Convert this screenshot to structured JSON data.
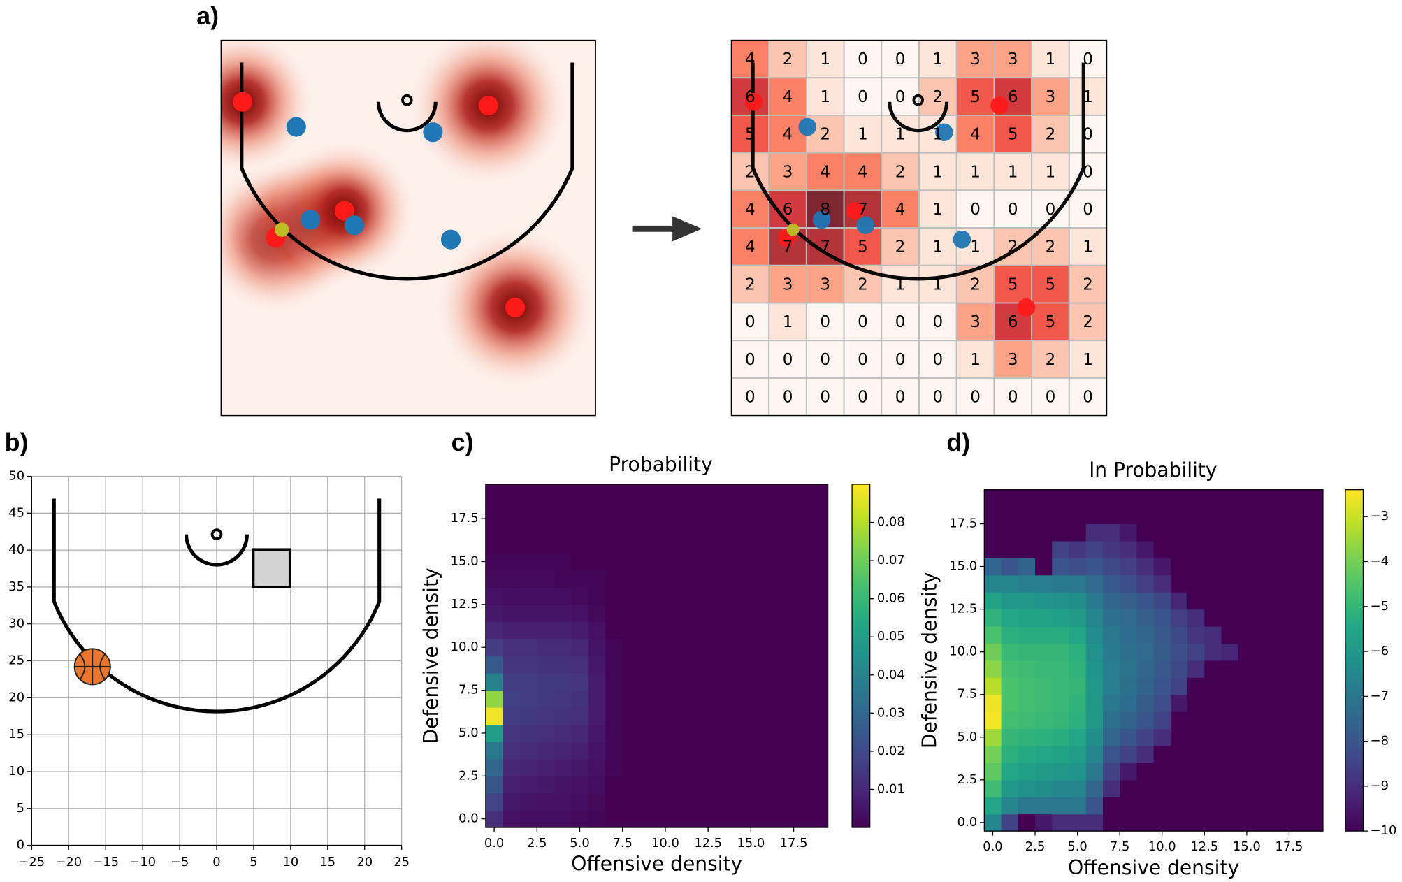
{
  "chart_data": [
    {
      "type": "count-grid",
      "panel": "a)",
      "values": [
        [
          4,
          2,
          1,
          0,
          0,
          1,
          3,
          3,
          1,
          0
        ],
        [
          6,
          4,
          1,
          0,
          0,
          2,
          5,
          6,
          3,
          1
        ],
        [
          5,
          4,
          2,
          1,
          1,
          1,
          4,
          5,
          2,
          0
        ],
        [
          2,
          3,
          4,
          4,
          2,
          1,
          1,
          1,
          1,
          0
        ],
        [
          4,
          6,
          8,
          7,
          4,
          1,
          0,
          0,
          0,
          0
        ],
        [
          4,
          7,
          7,
          5,
          2,
          1,
          1,
          2,
          2,
          1
        ],
        [
          2,
          3,
          3,
          2,
          1,
          1,
          2,
          5,
          5,
          2
        ],
        [
          0,
          1,
          0,
          0,
          0,
          0,
          3,
          6,
          5,
          2
        ],
        [
          0,
          0,
          0,
          0,
          0,
          0,
          1,
          3,
          2,
          1
        ],
        [
          0,
          0,
          0,
          0,
          0,
          0,
          0,
          0,
          0,
          0
        ]
      ]
    },
    {
      "type": "court",
      "panel": "b)",
      "grid": true,
      "xlim": [
        -25,
        25
      ],
      "ylim": [
        0,
        50
      ],
      "xticks": [
        {
          "value": -25,
          "label": "−25"
        },
        {
          "value": -20,
          "label": "−20"
        },
        {
          "value": -15,
          "label": "−15"
        },
        {
          "value": -10,
          "label": "−10"
        },
        {
          "value": -5,
          "label": "−5"
        },
        0,
        5,
        10,
        15,
        20,
        25
      ],
      "yticks": [
        0,
        5,
        10,
        15,
        20,
        25,
        30,
        35,
        40,
        45,
        50
      ]
    },
    {
      "type": "heatmap",
      "panel": "c)",
      "title": "Probability",
      "xlabel": "Offensive density",
      "ylabel": "Defensive density",
      "colormap": "viridis",
      "xlim": [
        -0.5,
        19.5
      ],
      "ylim": [
        -0.5,
        19.5
      ],
      "xticks": [
        {
          "value": 0,
          "label": "0.0"
        },
        2.5,
        {
          "value": 5,
          "label": "5.0"
        },
        7.5,
        {
          "value": 10,
          "label": "10.0"
        },
        12.5,
        {
          "value": 15,
          "label": "15.0"
        },
        17.5
      ],
      "yticks": [
        {
          "value": 0,
          "label": "0.0"
        },
        2.5,
        {
          "value": 5,
          "label": "5.0"
        },
        7.5,
        {
          "value": 10,
          "label": "10.0"
        },
        12.5,
        {
          "value": 15,
          "label": "15.0"
        },
        17.5
      ],
      "clim": [
        0,
        0.09
      ],
      "cticks": [
        0.01,
        0.02,
        0.03,
        0.04,
        0.05,
        0.06,
        0.07,
        0.08
      ],
      "x": [
        0,
        1,
        2,
        3,
        4,
        5,
        6,
        7,
        8,
        9,
        10,
        11,
        12,
        13,
        14,
        15,
        16,
        17,
        18,
        19
      ],
      "y": [
        0,
        1,
        2,
        3,
        4,
        5,
        6,
        7,
        8,
        9,
        10,
        11,
        12,
        13,
        14,
        15,
        16,
        17,
        18,
        19
      ],
      "values": [
        [
          0.012,
          0.004,
          0.003,
          0.003,
          0.003,
          0.002,
          0.001,
          0,
          0,
          0,
          0,
          0,
          0,
          0,
          0,
          0,
          0,
          0,
          0,
          0
        ],
        [
          0.018,
          0.006,
          0.005,
          0.004,
          0.004,
          0.003,
          0.002,
          0,
          0,
          0,
          0,
          0,
          0,
          0,
          0,
          0,
          0,
          0,
          0,
          0
        ],
        [
          0.024,
          0.008,
          0.007,
          0.006,
          0.005,
          0.004,
          0.003,
          0,
          0,
          0,
          0,
          0,
          0,
          0,
          0,
          0,
          0,
          0,
          0,
          0
        ],
        [
          0.03,
          0.01,
          0.009,
          0.008,
          0.007,
          0.006,
          0.004,
          0.001,
          0,
          0,
          0,
          0,
          0,
          0,
          0,
          0,
          0,
          0,
          0,
          0
        ],
        [
          0.036,
          0.012,
          0.011,
          0.01,
          0.009,
          0.008,
          0.005,
          0.001,
          0,
          0,
          0,
          0,
          0,
          0,
          0,
          0,
          0,
          0,
          0,
          0
        ],
        [
          0.05,
          0.014,
          0.013,
          0.012,
          0.011,
          0.01,
          0.006,
          0.001,
          0,
          0,
          0,
          0,
          0,
          0,
          0,
          0,
          0,
          0,
          0,
          0
        ],
        [
          0.088,
          0.016,
          0.015,
          0.014,
          0.013,
          0.012,
          0.007,
          0.001,
          0,
          0,
          0,
          0,
          0,
          0,
          0,
          0,
          0,
          0,
          0,
          0
        ],
        [
          0.075,
          0.017,
          0.016,
          0.015,
          0.014,
          0.013,
          0.007,
          0.001,
          0,
          0,
          0,
          0,
          0,
          0,
          0,
          0,
          0,
          0,
          0,
          0
        ],
        [
          0.04,
          0.016,
          0.016,
          0.015,
          0.015,
          0.014,
          0.007,
          0.001,
          0,
          0,
          0,
          0,
          0,
          0,
          0,
          0,
          0,
          0,
          0,
          0
        ],
        [
          0.025,
          0.014,
          0.014,
          0.013,
          0.013,
          0.012,
          0.006,
          0.001,
          0,
          0,
          0,
          0,
          0,
          0,
          0,
          0,
          0,
          0,
          0,
          0
        ],
        [
          0.016,
          0.012,
          0.012,
          0.011,
          0.011,
          0.01,
          0.005,
          0.001,
          0,
          0,
          0,
          0,
          0,
          0,
          0,
          0,
          0,
          0,
          0,
          0
        ],
        [
          0.01,
          0.008,
          0.008,
          0.008,
          0.008,
          0.007,
          0.004,
          0,
          0,
          0,
          0,
          0,
          0,
          0,
          0,
          0,
          0,
          0,
          0,
          0
        ],
        [
          0.006,
          0.005,
          0.005,
          0.005,
          0.005,
          0.004,
          0.002,
          0,
          0,
          0,
          0,
          0,
          0,
          0,
          0,
          0,
          0,
          0,
          0,
          0
        ],
        [
          0.004,
          0.003,
          0.003,
          0.003,
          0.003,
          0.002,
          0.001,
          0,
          0,
          0,
          0,
          0,
          0,
          0,
          0,
          0,
          0,
          0,
          0,
          0
        ],
        [
          0.002,
          0.002,
          0.002,
          0.002,
          0.001,
          0.001,
          0.001,
          0,
          0,
          0,
          0,
          0,
          0,
          0,
          0,
          0,
          0,
          0,
          0,
          0
        ],
        [
          0.001,
          0.001,
          0.001,
          0.001,
          0.001,
          0,
          0,
          0,
          0,
          0,
          0,
          0,
          0,
          0,
          0,
          0,
          0,
          0,
          0,
          0
        ],
        [
          0,
          0,
          0,
          0,
          0,
          0,
          0,
          0,
          0,
          0,
          0,
          0,
          0,
          0,
          0,
          0,
          0,
          0,
          0,
          0
        ],
        [
          0,
          0,
          0,
          0,
          0,
          0,
          0,
          0,
          0,
          0,
          0,
          0,
          0,
          0,
          0,
          0,
          0,
          0,
          0,
          0
        ],
        [
          0,
          0,
          0,
          0,
          0,
          0,
          0,
          0,
          0,
          0,
          0,
          0,
          0,
          0,
          0,
          0,
          0,
          0,
          0,
          0
        ],
        [
          0,
          0,
          0,
          0,
          0,
          0,
          0,
          0,
          0,
          0,
          0,
          0,
          0,
          0,
          0,
          0,
          0,
          0,
          0,
          0
        ]
      ]
    },
    {
      "type": "heatmap",
      "panel": "d)",
      "title": "ln Probability",
      "xlabel": "Offensive density",
      "ylabel": "Defensive density",
      "colormap": "viridis",
      "xlim": [
        -0.5,
        19.5
      ],
      "ylim": [
        -0.5,
        19.5
      ],
      "xticks": [
        {
          "value": 0,
          "label": "0.0"
        },
        2.5,
        {
          "value": 5,
          "label": "5.0"
        },
        7.5,
        {
          "value": 10,
          "label": "10.0"
        },
        12.5,
        {
          "value": 15,
          "label": "15.0"
        },
        17.5
      ],
      "yticks": [
        {
          "value": 0,
          "label": "0.0"
        },
        2.5,
        {
          "value": 5,
          "label": "5.0"
        },
        7.5,
        {
          "value": 10,
          "label": "10.0"
        },
        12.5,
        {
          "value": 15,
          "label": "15.0"
        },
        17.5
      ],
      "clim": [
        -10,
        -2.4
      ],
      "cticks": [
        {
          "value": -3,
          "label": "−3"
        },
        {
          "value": -4,
          "label": "−4"
        },
        {
          "value": -5,
          "label": "−5"
        },
        {
          "value": -6,
          "label": "−6"
        },
        {
          "value": -7,
          "label": "−7"
        },
        {
          "value": -8,
          "label": "−8"
        },
        {
          "value": -9,
          "label": "−9"
        },
        {
          "value": -10,
          "label": "−10"
        }
      ],
      "x": [
        0,
        1,
        2,
        3,
        4,
        5,
        6,
        7,
        8,
        9,
        10,
        11,
        12,
        13,
        14,
        15,
        16,
        17,
        18,
        19
      ],
      "y": [
        0,
        1,
        2,
        3,
        4,
        5,
        6,
        7,
        8,
        9,
        10,
        11,
        12,
        13,
        14,
        15,
        16,
        17,
        18,
        19
      ],
      "values": [
        [
          -6.5,
          -8.5,
          -10,
          -9.5,
          -9,
          -9,
          -9,
          -10,
          -10,
          -10,
          -10,
          -10,
          -10,
          -10,
          -10,
          -10,
          -10,
          -10,
          -10,
          -10
        ],
        [
          -5.5,
          -6.5,
          -7,
          -7,
          -7,
          -7,
          -8,
          -10,
          -10,
          -10,
          -10,
          -10,
          -10,
          -10,
          -10,
          -10,
          -10,
          -10,
          -10,
          -10
        ],
        [
          -4.8,
          -6,
          -6.2,
          -6.3,
          -6.5,
          -6.6,
          -7.5,
          -9,
          -10,
          -10,
          -10,
          -10,
          -10,
          -10,
          -10,
          -10,
          -10,
          -10,
          -10,
          -10
        ],
        [
          -4.3,
          -5.5,
          -5.7,
          -5.9,
          -6,
          -6.1,
          -7,
          -8.5,
          -9.5,
          -10,
          -10,
          -10,
          -10,
          -10,
          -10,
          -10,
          -10,
          -10,
          -10,
          -10
        ],
        [
          -4,
          -5.2,
          -5.4,
          -5.5,
          -5.6,
          -5.8,
          -6.6,
          -8,
          -8.5,
          -9,
          -10,
          -10,
          -10,
          -10,
          -10,
          -10,
          -10,
          -10,
          -10,
          -10
        ],
        [
          -3.5,
          -5,
          -5.1,
          -5.2,
          -5.3,
          -5.5,
          -6.3,
          -7.5,
          -8,
          -8.5,
          -9,
          -10,
          -10,
          -10,
          -10,
          -10,
          -10,
          -10,
          -10,
          -10
        ],
        [
          -2.5,
          -4.7,
          -4.8,
          -4.9,
          -5,
          -5.2,
          -6,
          -7.2,
          -7.6,
          -8,
          -8.5,
          -10,
          -10,
          -10,
          -10,
          -10,
          -10,
          -10,
          -10,
          -10
        ],
        [
          -2.6,
          -4.6,
          -4.7,
          -4.8,
          -4.9,
          -5.1,
          -6,
          -7,
          -7.3,
          -7.8,
          -8.2,
          -9.5,
          -10,
          -10,
          -10,
          -10,
          -10,
          -10,
          -10,
          -10
        ],
        [
          -3.2,
          -4.6,
          -4.7,
          -4.8,
          -4.9,
          -5,
          -6,
          -6.8,
          -7.2,
          -7.6,
          -8,
          -8.5,
          -10,
          -10,
          -10,
          -10,
          -10,
          -10,
          -10,
          -10
        ],
        [
          -3.7,
          -4.7,
          -4.8,
          -4.9,
          -4.9,
          -5.1,
          -6.1,
          -6.8,
          -7.1,
          -7.5,
          -7.9,
          -8.3,
          -9,
          -10,
          -10,
          -10,
          -10,
          -10,
          -10,
          -10
        ],
        [
          -4.1,
          -4.9,
          -5,
          -5,
          -5,
          -5.2,
          -6.2,
          -6.9,
          -7.2,
          -7.4,
          -7.8,
          -8.2,
          -8.5,
          -9,
          -9.2,
          -10,
          -10,
          -10,
          -10,
          -10
        ],
        [
          -4.6,
          -5.2,
          -5.3,
          -5.3,
          -5.3,
          -5.5,
          -6.4,
          -7,
          -7.3,
          -7.5,
          -7.9,
          -8.3,
          -8.8,
          -9,
          -10,
          -10,
          -10,
          -10,
          -10,
          -10
        ],
        [
          -5.1,
          -5.5,
          -5.6,
          -5.6,
          -5.7,
          -5.9,
          -6.6,
          -7.2,
          -7.4,
          -7.7,
          -8,
          -8.6,
          -9,
          -10,
          -10,
          -10,
          -10,
          -10,
          -10,
          -10
        ],
        [
          -5.6,
          -6,
          -6,
          -6.1,
          -6.2,
          -6.3,
          -6.9,
          -7.5,
          -7.7,
          -8,
          -8.4,
          -9.2,
          -10,
          -10,
          -10,
          -10,
          -10,
          -10,
          -10,
          -10
        ],
        [
          -6.6,
          -6.6,
          -6.8,
          -6.8,
          -6.9,
          -7,
          -7.4,
          -7.9,
          -8.2,
          -8.6,
          -9,
          -10,
          -10,
          -10,
          -10,
          -10,
          -10,
          -10,
          -10,
          -10
        ],
        [
          -7.5,
          -8,
          -7.6,
          -10,
          -8,
          -8.2,
          -8,
          -8.3,
          -8.6,
          -9,
          -9.5,
          -10,
          -10,
          -10,
          -10,
          -10,
          -10,
          -10,
          -10,
          -10
        ],
        [
          -10,
          -10,
          -10,
          -10,
          -8.5,
          -8.8,
          -8.5,
          -8.8,
          -9,
          -9.5,
          -10,
          -10,
          -10,
          -10,
          -10,
          -10,
          -10,
          -10,
          -10,
          -10
        ],
        [
          -10,
          -10,
          -10,
          -10,
          -10,
          -10,
          -9,
          -9,
          -9.5,
          -10,
          -10,
          -10,
          -10,
          -10,
          -10,
          -10,
          -10,
          -10,
          -10,
          -10
        ],
        [
          -10,
          -10,
          -10,
          -10,
          -10,
          -10,
          -10,
          -10,
          -10,
          -10,
          -10,
          -10,
          -10,
          -10,
          -10,
          -10,
          -10,
          -10,
          -10,
          -10
        ],
        [
          -10,
          -10,
          -10,
          -10,
          -10,
          -10,
          -10,
          -10,
          -10,
          -10,
          -10,
          -10,
          -10,
          -10,
          -10,
          -10,
          -10,
          -10,
          -10,
          -10
        ]
      ]
    }
  ]
}
